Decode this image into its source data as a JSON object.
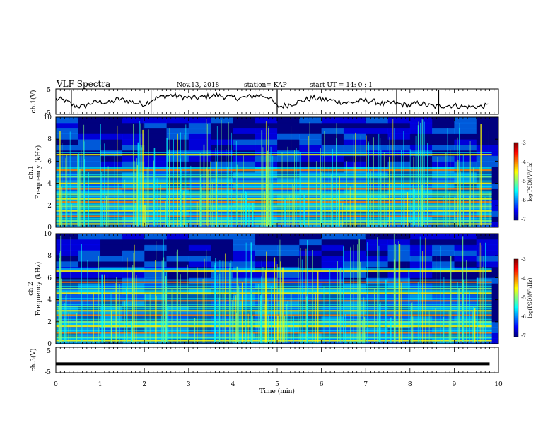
{
  "header": {
    "title": "VLF Spectra",
    "date": "Nov.13, 2018",
    "station": "station= KAP",
    "start": "start  UT =   14: 0   : 1"
  },
  "chart_data": [
    {
      "type": "line",
      "name": "ch1-waveform",
      "ylabel": "ch.1(V)",
      "ylim": [
        -5,
        5
      ],
      "yticks": [
        "5",
        "-5"
      ],
      "xlim": [
        0,
        10
      ],
      "x": [
        0,
        0.2,
        0.4,
        0.6,
        0.8,
        1.0,
        1.2,
        1.4,
        1.6,
        1.8,
        2.0,
        2.2,
        2.4,
        2.6,
        2.8,
        3.0,
        3.2,
        3.4,
        3.6,
        3.8,
        4.0,
        4.2,
        4.4,
        4.6,
        4.8,
        5.0,
        5.2,
        5.4,
        5.6,
        5.8,
        6.0,
        6.2,
        6.4,
        6.6,
        6.8,
        7.0,
        7.2,
        7.4,
        7.6,
        7.8,
        8.0,
        8.2,
        8.4,
        8.6,
        8.8,
        9.0,
        9.2,
        9.4,
        9.6,
        9.8
      ],
      "values": [
        1.0,
        0.5,
        -1.5,
        -2.0,
        -0.5,
        0.0,
        -0.5,
        1.0,
        0.5,
        -0.5,
        -1.0,
        1.0,
        2.0,
        2.5,
        2.0,
        1.5,
        1.5,
        2.0,
        2.5,
        2.0,
        1.5,
        1.5,
        2.0,
        2.5,
        2.0,
        -2.0,
        -1.5,
        -0.5,
        0.5,
        1.5,
        1.0,
        0.5,
        0.0,
        -0.5,
        0.0,
        0.5,
        0.0,
        -1.0,
        -0.5,
        -1.0,
        -1.5,
        -0.5,
        -1.5,
        -2.0,
        -1.5,
        -1.5,
        -2.0,
        -2.0,
        -2.0,
        -1.5
      ]
    },
    {
      "type": "heatmap",
      "name": "ch1-spectrogram",
      "ylabel_top": "ch.1",
      "ylabel": "Frequency  (kHz)",
      "ylim": [
        0,
        10
      ],
      "yticks": [
        "0",
        "2",
        "4",
        "6",
        "8",
        "10"
      ],
      "xlim": [
        0,
        10
      ],
      "colorbar": {
        "label": "log(PSD)(V²/Hz)",
        "range": [
          -7,
          -3
        ],
        "ticks": [
          "-3",
          "-4",
          "-5",
          "-6",
          "-7"
        ]
      },
      "bands_khz": [
        0.3,
        0.6,
        1.0,
        1.5,
        1.9,
        2.3,
        2.6,
        3.0,
        3.5,
        4.0,
        4.6,
        5.2,
        6.6
      ]
    },
    {
      "type": "heatmap",
      "name": "ch2-spectrogram",
      "ylabel_top": "ch.2",
      "ylabel": "Frequency  (kHz)",
      "ylim": [
        0,
        10
      ],
      "yticks": [
        "0",
        "2",
        "4",
        "6",
        "8",
        "10"
      ],
      "xlim": [
        0,
        10
      ],
      "colorbar": {
        "label": "log(PSD)(V²/Hz)",
        "range": [
          -7,
          -3
        ],
        "ticks": [
          "-3",
          "-4",
          "-5",
          "-6",
          "-7"
        ]
      },
      "bands_khz": [
        0.3,
        0.6,
        1.0,
        1.6,
        2.0,
        2.6,
        3.0,
        3.4,
        3.9,
        4.6,
        5.0,
        5.6,
        6.6
      ]
    },
    {
      "type": "line",
      "name": "ch3-waveform",
      "ylabel": "ch.3(V)",
      "ylim": [
        -5,
        5
      ],
      "yticks": [
        "5",
        "-5"
      ],
      "xlim": [
        0,
        10
      ],
      "x": [
        0,
        9.8
      ],
      "values": [
        -1.5,
        -1.5
      ]
    }
  ],
  "xaxis": {
    "label": "Time  (min)",
    "ticks": [
      "0",
      "1",
      "2",
      "3",
      "4",
      "5",
      "6",
      "7",
      "8",
      "9",
      "10"
    ]
  },
  "colors": {
    "scale": [
      "#00007f",
      "#0000ff",
      "#007fff",
      "#00ffff",
      "#7fff7f",
      "#ffff00",
      "#ff7f00",
      "#ff0000",
      "#7f0000"
    ]
  }
}
